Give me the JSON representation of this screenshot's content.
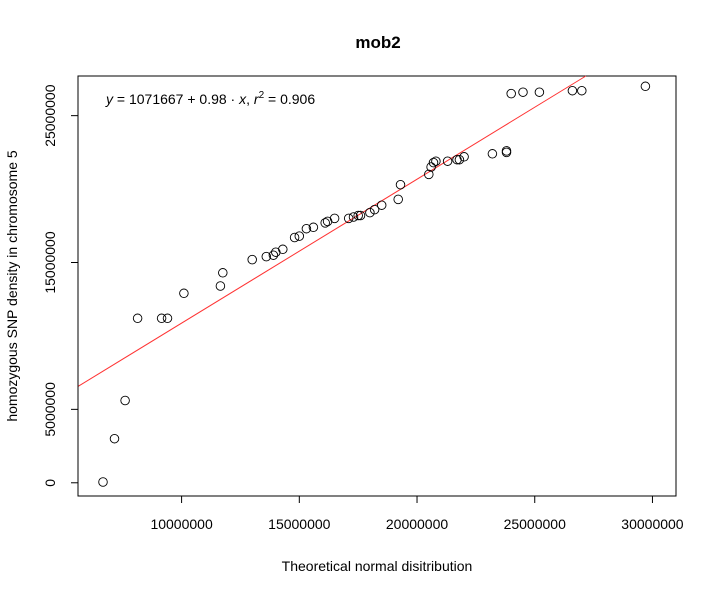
{
  "chart_data": {
    "type": "scatter",
    "title": "mob2",
    "xlabel": "Theoretical normal disitribution",
    "ylabel": "homozygous SNP density in chromosome 5",
    "xlim": [
      5600000,
      31000000
    ],
    "ylim": [
      -900000,
      27700000
    ],
    "x_ticks": [
      10000000,
      15000000,
      20000000,
      25000000,
      30000000
    ],
    "x_tick_labels": [
      "10000000",
      "15000000",
      "20000000",
      "25000000",
      "30000000"
    ],
    "y_ticks": [
      0,
      5000000,
      15000000,
      25000000
    ],
    "y_tick_labels": [
      "0",
      "5000000",
      "15000000",
      "25000000"
    ],
    "grid": false,
    "annotation": {
      "y_var": "y",
      "equals": " = 1071667 + 0.98 · ",
      "x_var": "x",
      "sep": ",  ",
      "r_var": "r",
      "r_exp": "2",
      "r_value": " = 0.906"
    },
    "fit": {
      "intercept": 1071667,
      "slope": 0.98,
      "color": "#ff3333"
    },
    "points": {
      "x": [
        6660000,
        7150000,
        7600000,
        8130000,
        9150000,
        9400000,
        10100000,
        11650000,
        11750000,
        13000000,
        13600000,
        13900000,
        14000000,
        14300000,
        14800000,
        15000000,
        15300000,
        15600000,
        16100000,
        16200000,
        16500000,
        17100000,
        17300000,
        17500000,
        17600000,
        18000000,
        18200000,
        18500000,
        19200000,
        19300000,
        20500000,
        20600000,
        20700000,
        20800000,
        21300000,
        21700000,
        21800000,
        22000000,
        23200000,
        23800000,
        23800000,
        24000000,
        24500000,
        25200000,
        26600000,
        27000000,
        29700000
      ],
      "y": [
        50000,
        3000000,
        5600000,
        11200000,
        11200000,
        11200000,
        12900000,
        13400000,
        14300000,
        15200000,
        15400000,
        15500000,
        15700000,
        15900000,
        16700000,
        16800000,
        17300000,
        17400000,
        17700000,
        17800000,
        18000000,
        18000000,
        18100000,
        18200000,
        18200000,
        18400000,
        18600000,
        18900000,
        19300000,
        20300000,
        21000000,
        21500000,
        21800000,
        21900000,
        21900000,
        22000000,
        22000000,
        22200000,
        22400000,
        22500000,
        22600000,
        26500000,
        26600000,
        26600000,
        26700000,
        26700000,
        27000000
      ]
    },
    "point_color": "#000000"
  }
}
